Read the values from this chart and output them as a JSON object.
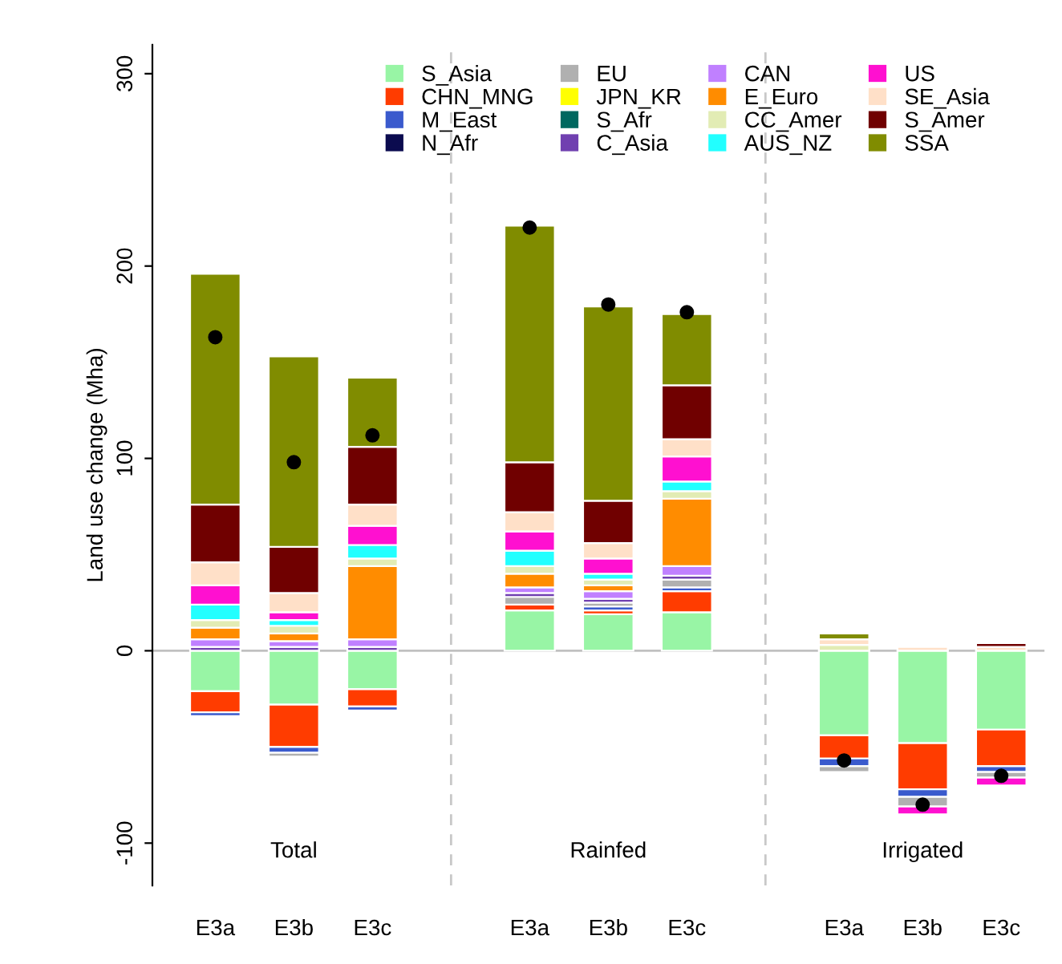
{
  "chart_data": {
    "type": "bar",
    "stacked": true,
    "ylabel": "Land use change (Mha)",
    "categories": [
      "E3a",
      "E3b",
      "E3c",
      null,
      "E3a",
      "E3b",
      "E3c",
      null,
      "E3a",
      "E3b",
      "E3c"
    ],
    "annotations": [
      "Total",
      "Rainfed",
      "Irrigated"
    ],
    "ylim": [
      -122,
      315
    ],
    "yticks": [
      -100,
      0,
      100,
      200,
      300
    ],
    "legend": "top",
    "ref_lines": [
      {
        "axis": "y",
        "value": 0,
        "color": "#c0c0c0",
        "line_style": "solid"
      }
    ],
    "series": [
      {
        "name": "S_Asia",
        "color": "#98f5a5",
        "values": [
          -21,
          -28,
          -20,
          null,
          21,
          19,
          20,
          null,
          -44,
          -48,
          -41
        ]
      },
      {
        "name": "CHN_MNG",
        "color": "#ff3c00",
        "values": [
          -11,
          -22,
          -9,
          null,
          3,
          2,
          11,
          null,
          -12,
          -24,
          -19
        ]
      },
      {
        "name": "M_East",
        "color": "#3a5acd",
        "values": [
          -2,
          -3,
          -2,
          null,
          null,
          2,
          2,
          null,
          -4,
          -4,
          -3
        ]
      },
      {
        "name": "N_Afr",
        "color": "#0b0b4f",
        "values": [
          null,
          null,
          null,
          null,
          null,
          null,
          null,
          null,
          null,
          null,
          null
        ]
      },
      {
        "name": "EU",
        "color": "#b0b0b0",
        "values": [
          null,
          -2,
          null,
          null,
          4,
          2,
          4,
          null,
          -3,
          -5,
          -3
        ]
      },
      {
        "name": "JPN_KR",
        "color": "#ffff00",
        "values": [
          null,
          null,
          null,
          null,
          null,
          null,
          null,
          null,
          null,
          null,
          null
        ]
      },
      {
        "name": "S_Afr",
        "color": "#006860",
        "values": [
          null,
          null,
          null,
          null,
          null,
          null,
          null,
          null,
          null,
          null,
          null
        ]
      },
      {
        "name": "C_Asia",
        "color": "#7040b0",
        "values": [
          2,
          2,
          2,
          null,
          2,
          2,
          2,
          null,
          null,
          null,
          null
        ]
      },
      {
        "name": "CAN",
        "color": "#c080ff",
        "values": [
          4,
          3,
          4,
          null,
          3,
          4,
          5,
          null,
          null,
          null,
          null
        ]
      },
      {
        "name": "E_Euro",
        "color": "#ff8c00",
        "values": [
          6,
          4,
          38,
          null,
          7,
          3,
          35,
          null,
          null,
          null,
          null
        ]
      },
      {
        "name": "CC_Amer",
        "color": "#e2ecb4",
        "values": [
          4,
          4,
          4,
          null,
          4,
          3,
          4,
          null,
          3,
          null,
          null
        ]
      },
      {
        "name": "AUS_NZ",
        "color": "#22ffff",
        "values": [
          8,
          3,
          7,
          null,
          8,
          3,
          5,
          null,
          null,
          null,
          null
        ]
      },
      {
        "name": "US",
        "color": "#ff10d0",
        "values": [
          10,
          4,
          10,
          null,
          10,
          8,
          13,
          null,
          null,
          -4,
          -4
        ]
      },
      {
        "name": "SE_Asia",
        "color": "#ffe0c8",
        "values": [
          12,
          10,
          11,
          null,
          10,
          8,
          9,
          null,
          3,
          2,
          2
        ]
      },
      {
        "name": "S_Amer",
        "color": "#700000",
        "values": [
          30,
          24,
          30,
          null,
          26,
          22,
          28,
          null,
          null,
          null,
          2
        ]
      },
      {
        "name": "SSA",
        "color": "#808c00",
        "values": [
          120,
          99,
          36,
          null,
          123,
          101,
          37,
          null,
          3,
          null,
          null
        ]
      },
      {
        "type": "scatter",
        "color": "#000000",
        "marker": "circle",
        "values": [
          163,
          98,
          112,
          null,
          220,
          180,
          176,
          null,
          -57,
          -80,
          -65
        ]
      }
    ]
  }
}
